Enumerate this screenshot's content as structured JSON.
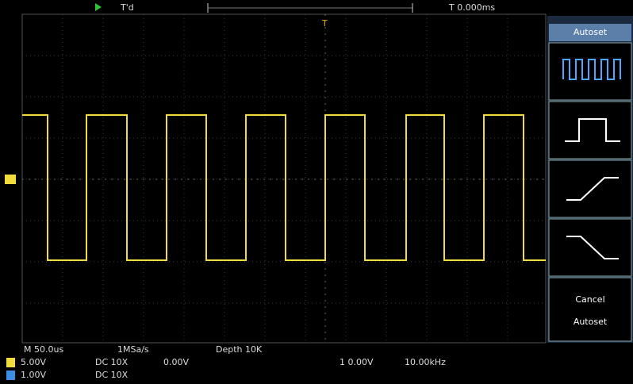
{
  "top_bar": {
    "status": "T'd",
    "trigger_position": "T 0.000ms"
  },
  "menu": {
    "title": "Autoset",
    "footer_line1": "Cancel",
    "footer_line2": "Autoset"
  },
  "bottom_bar": {
    "timebase": "M 50.0us",
    "sample_rate": "1MSa/s",
    "depth": "Depth 10K",
    "ch1_scale": "5.00V",
    "ch1_coupling": "DC 10X",
    "ch1_offset": "0.00V",
    "trigger_info": "1 0.00V",
    "frequency": "10.00kHz",
    "ch2_scale": "1.00V",
    "ch2_coupling": "DC 10X"
  }
}
